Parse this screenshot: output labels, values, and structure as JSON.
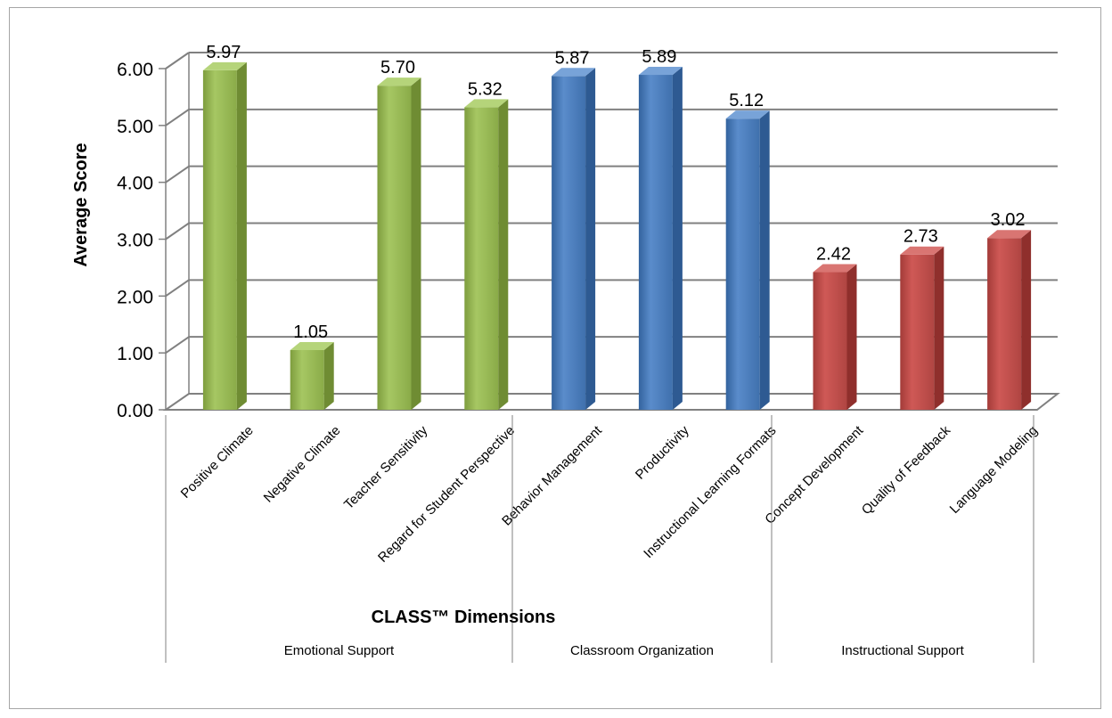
{
  "chart_data": {
    "type": "bar",
    "title": "",
    "xlabel": "CLASS™ Dimensions",
    "ylabel": "Average Score",
    "ylim": [
      0,
      6
    ],
    "yticks": [
      "0.00",
      "1.00",
      "2.00",
      "3.00",
      "4.00",
      "5.00",
      "6.00"
    ],
    "grid": true,
    "legend": "none",
    "categories": [
      "Positive Climate",
      "Negative Climate",
      "Teacher Sensitivity",
      "Regard for Student Perspective",
      "Behavior Management",
      "Productivity",
      "Instructional Learning Formats",
      "Concept Development",
      "Quality of Feedback",
      "Language Modeling"
    ],
    "values": [
      5.97,
      1.05,
      5.7,
      5.32,
      5.87,
      5.89,
      5.12,
      2.42,
      2.73,
      3.02
    ],
    "value_labels": [
      "5.97",
      "1.05",
      "5.70",
      "5.32",
      "5.87",
      "5.89",
      "5.12",
      "2.42",
      "2.73",
      "3.02"
    ],
    "groups": [
      {
        "label": "Emotional Support",
        "count": 4,
        "color": "#9bbb59"
      },
      {
        "label": "Classroom Organization",
        "count": 3,
        "color": "#4f81bd"
      },
      {
        "label": "Instructional Support",
        "count": 3,
        "color": "#c0504d"
      }
    ]
  }
}
